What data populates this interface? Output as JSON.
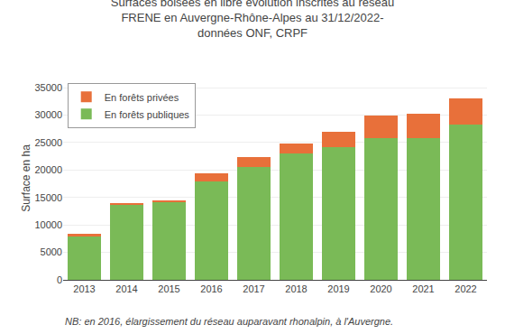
{
  "chart_data": {
    "type": "bar",
    "stacked": true,
    "title": "Surfaces boisées en libre évolution inscrites au réseau\nFRENE en Auvergne-Rhône-Alpes au 31/12/2022-\ndonnées ONF, CRPF",
    "y_label": "Surface en ha",
    "categories": [
      "2013",
      "2014",
      "2015",
      "2016",
      "2017",
      "2018",
      "2019",
      "2020",
      "2021",
      "2022"
    ],
    "series": [
      {
        "name": "En forêts publiques",
        "color": "#7aba57",
        "values": [
          7900,
          13800,
          14300,
          17900,
          20600,
          23000,
          24200,
          25900,
          25800,
          28300
        ]
      },
      {
        "name": "En forêts privées",
        "color": "#e8703a",
        "values": [
          500,
          200,
          200,
          1500,
          1700,
          1900,
          2700,
          4100,
          4400,
          4700
        ]
      }
    ],
    "ylim": [
      0,
      37000
    ],
    "yticks": [
      0,
      5000,
      10000,
      15000,
      20000,
      25000,
      30000,
      35000
    ],
    "grid": true,
    "legend": "upper left",
    "annotations": [
      "NB: en 2016, élargissement du réseau auparavant rhonalpin, à l'Auvergne."
    ]
  }
}
